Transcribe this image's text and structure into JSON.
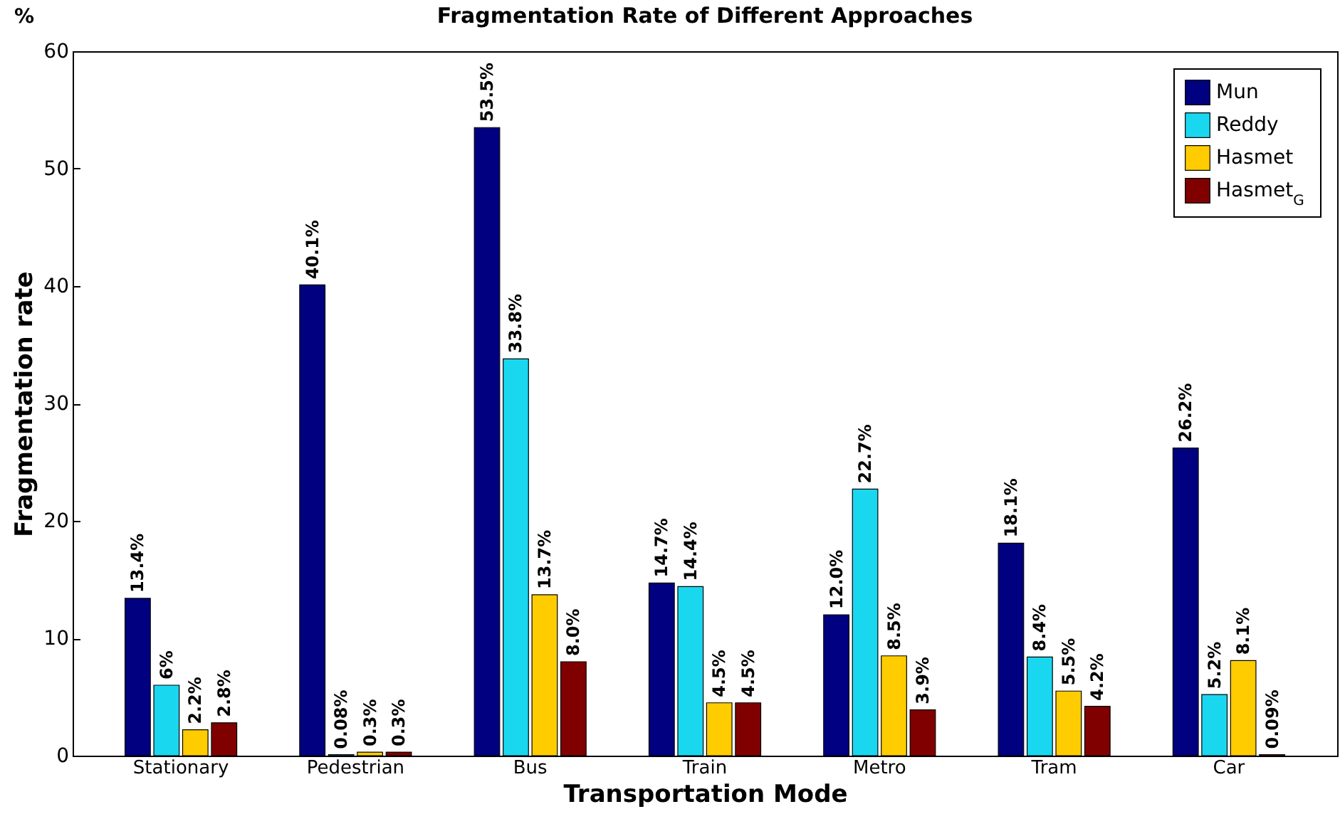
{
  "chart_data": {
    "type": "bar",
    "title": "Fragmentation Rate of Different Approaches",
    "xlabel": "Transportation Mode",
    "ylabel": "Fragmentation rate",
    "annotations": [
      "%"
    ],
    "categories": [
      "Stationary",
      "Pedestrian",
      "Bus",
      "Train",
      "Metro",
      "Tram",
      "Car"
    ],
    "series": [
      {
        "name": "Mun",
        "color": "#000080",
        "values": [
          13.4,
          40.1,
          53.5,
          14.7,
          12.0,
          18.1,
          26.2
        ],
        "value_labels": [
          "13.4%",
          "40.1%",
          "53.5%",
          "14.7%",
          "12.0%",
          "18.1%",
          "26.2%"
        ]
      },
      {
        "name": "Reddy",
        "color": "#1ad7f0",
        "values": [
          6,
          0.08,
          33.8,
          14.4,
          22.7,
          8.4,
          5.2
        ],
        "value_labels": [
          "6%",
          "0.08%",
          "33.8%",
          "14.4%",
          "22.7%",
          "8.4%",
          "5.2%"
        ]
      },
      {
        "name": "Hasmet",
        "color": "#ffcc00",
        "values": [
          2.2,
          0.3,
          13.7,
          4.5,
          8.5,
          5.5,
          8.1
        ],
        "value_labels": [
          "2.2%",
          "0.3%",
          "13.7%",
          "4.5%",
          "8.5%",
          "5.5%",
          "8.1%"
        ]
      },
      {
        "name": "Hasmet$_{G}$",
        "color": "#800000",
        "values": [
          2.8,
          0.3,
          8.0,
          4.5,
          3.9,
          4.2,
          0.09
        ],
        "value_labels": [
          "2.8%",
          "0.3%",
          "8.0%",
          "4.5%",
          "3.9%",
          "4.2%",
          "0.09%"
        ]
      }
    ],
    "ylim": [
      0,
      60
    ],
    "yticks": [
      0,
      10,
      20,
      30,
      40,
      50,
      60
    ],
    "grid": false,
    "legend": "top right"
  }
}
